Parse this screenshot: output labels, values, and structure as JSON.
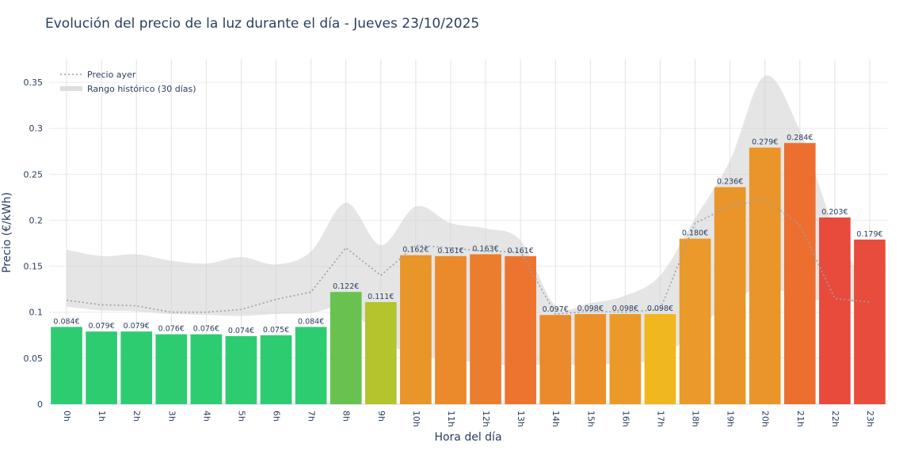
{
  "chart_data": {
    "type": "bar",
    "title": "Evolución del precio de la luz durante el día - Jueves 23/10/2025",
    "xlabel": "Hora del día",
    "ylabel": "Precio (€/kWh)",
    "ylim": [
      0,
      0.375
    ],
    "yticks": [
      {
        "value": 0,
        "label": "0"
      },
      {
        "value": 0.05,
        "label": "0.05"
      },
      {
        "value": 0.1,
        "label": "0.1"
      },
      {
        "value": 0.15,
        "label": "0.15"
      },
      {
        "value": 0.2,
        "label": "0.2"
      },
      {
        "value": 0.25,
        "label": "0.25"
      },
      {
        "value": 0.3,
        "label": "0.3"
      },
      {
        "value": 0.35,
        "label": "0.35"
      }
    ],
    "grid": true,
    "legend_position": "top-left",
    "legend": [
      {
        "label": "Precio ayer",
        "style": "dotted-line",
        "color": "#9aa0a6"
      },
      {
        "label": "Rango histórico (30 días)",
        "style": "band",
        "color": "#dedede"
      }
    ],
    "categories": [
      "0h",
      "1h",
      "2h",
      "3h",
      "4h",
      "5h",
      "6h",
      "7h",
      "8h",
      "9h",
      "10h",
      "11h",
      "12h",
      "13h",
      "14h",
      "15h",
      "16h",
      "17h",
      "18h",
      "19h",
      "20h",
      "21h",
      "22h",
      "23h"
    ],
    "values": [
      0.084,
      0.079,
      0.079,
      0.076,
      0.076,
      0.074,
      0.075,
      0.084,
      0.122,
      0.111,
      0.162,
      0.161,
      0.163,
      0.161,
      0.097,
      0.098,
      0.098,
      0.098,
      0.18,
      0.236,
      0.279,
      0.284,
      0.203,
      0.179
    ],
    "value_labels": [
      "0.084€",
      "0.079€",
      "0.079€",
      "0.076€",
      "0.076€",
      "0.074€",
      "0.075€",
      "0.084€",
      "0.122€",
      "0.111€",
      "0.162€",
      "0.161€",
      "0.163€",
      "0.161€",
      "0.097€",
      "0.098€",
      "0.098€",
      "0.098€",
      "0.180€",
      "0.236€",
      "0.279€",
      "0.284€",
      "0.203€",
      "0.179€"
    ],
    "bar_colors": [
      "#2ecc71",
      "#2ecc71",
      "#2ecc71",
      "#2ecc71",
      "#2ecc71",
      "#2ecc71",
      "#2ecc71",
      "#2ecc71",
      "#69c24f",
      "#b3c42c",
      "#e8952a",
      "#ea8a2b",
      "#eb7e2e",
      "#ec742f",
      "#eb8a2c",
      "#ec912a",
      "#eb9a29",
      "#f0b71e",
      "#e99a2a",
      "#e9952a",
      "#ea9529",
      "#ec6f30",
      "#e84a3c",
      "#e74c3c"
    ],
    "previous_day": [
      0.113,
      0.108,
      0.107,
      0.1,
      0.1,
      0.103,
      0.114,
      0.122,
      0.17,
      0.14,
      0.173,
      0.17,
      0.166,
      0.166,
      0.098,
      0.101,
      0.1,
      0.103,
      0.197,
      0.215,
      0.223,
      0.195,
      0.115,
      0.111
    ],
    "historical_range": {
      "min": [
        0.106,
        0.102,
        0.101,
        0.098,
        0.097,
        0.096,
        0.098,
        0.099,
        0.105,
        0.072,
        0.052,
        0.05,
        0.043,
        0.043,
        0.043,
        0.043,
        0.045,
        0.05,
        0.08,
        0.11,
        0.128,
        0.116,
        0.112,
        0.11
      ],
      "max": [
        0.168,
        0.161,
        0.163,
        0.156,
        0.153,
        0.16,
        0.152,
        0.166,
        0.219,
        0.173,
        0.215,
        0.197,
        0.191,
        0.178,
        0.107,
        0.11,
        0.118,
        0.14,
        0.202,
        0.265,
        0.357,
        0.297,
        0.19,
        0.123
      ]
    }
  }
}
